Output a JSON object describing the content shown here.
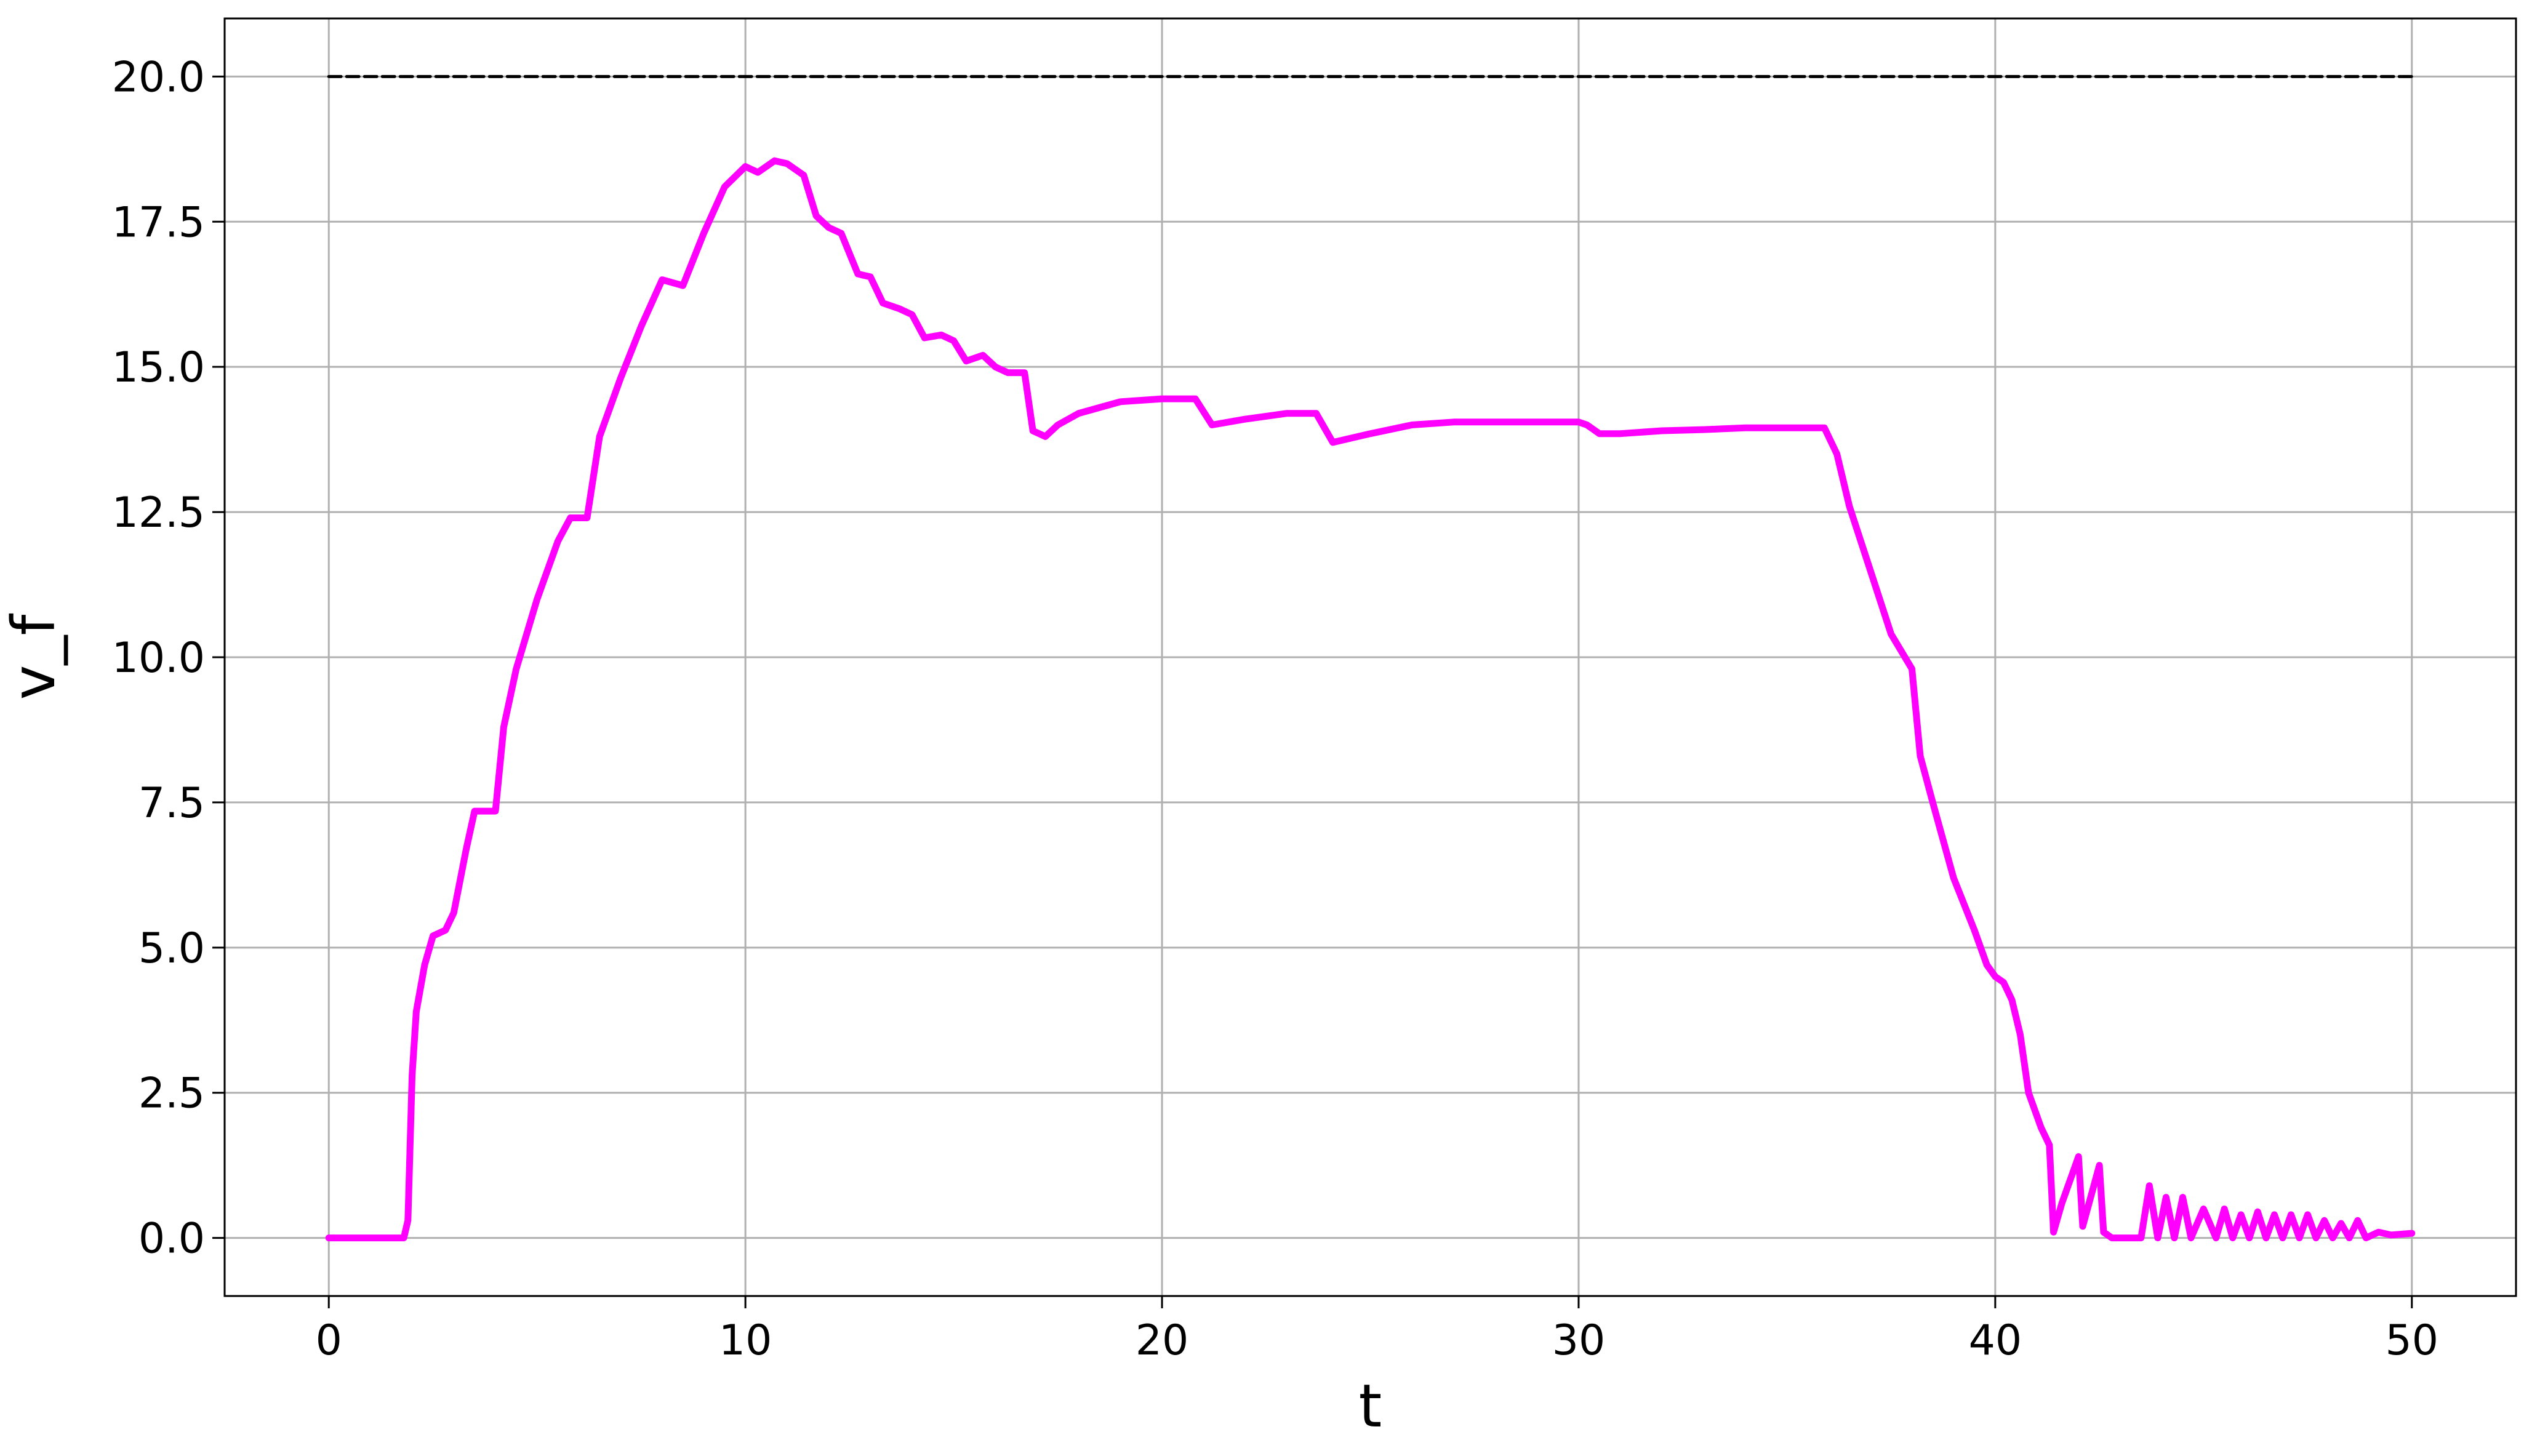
{
  "chart_data": {
    "type": "line",
    "title": "",
    "xlabel": "t",
    "ylabel": "v_f",
    "xlim": [
      -2.5,
      52.5
    ],
    "ylim": [
      -1.0,
      21.0
    ],
    "grid": true,
    "x_ticks": [
      0,
      10,
      20,
      30,
      40,
      50
    ],
    "x_tick_labels": [
      "0",
      "10",
      "20",
      "30",
      "40",
      "50"
    ],
    "y_ticks": [
      0.0,
      2.5,
      5.0,
      7.5,
      10.0,
      12.5,
      15.0,
      17.5,
      20.0
    ],
    "y_tick_labels": [
      "0.0",
      "2.5",
      "5.0",
      "7.5",
      "10.0",
      "12.5",
      "15.0",
      "17.5",
      "20.0"
    ],
    "series": [
      {
        "name": "",
        "color": "#ff00ff",
        "style": "solid",
        "x": [
          0,
          1.8,
          1.9,
          2.0,
          2.1,
          2.3,
          2.5,
          2.8,
          3.0,
          3.3,
          3.5,
          4.0,
          4.2,
          4.5,
          5.0,
          5.5,
          5.8,
          6.2,
          6.5,
          7.0,
          7.5,
          8.0,
          8.5,
          9.0,
          9.5,
          10.0,
          10.3,
          10.7,
          11.0,
          11.4,
          11.7,
          12.0,
          12.3,
          12.7,
          13.0,
          13.3,
          13.7,
          14.0,
          14.3,
          14.7,
          15.0,
          15.3,
          15.7,
          16.0,
          16.3,
          16.7,
          16.9,
          17.2,
          17.5,
          18.0,
          19.0,
          20.0,
          20.8,
          21.2,
          22.0,
          23.0,
          23.7,
          24.1,
          25.0,
          26.0,
          27.0,
          28.0,
          29.0,
          30.0,
          30.2,
          30.5,
          31.0,
          32.0,
          33.0,
          34.0,
          35.0,
          35.9,
          36.2,
          36.5,
          37.0,
          37.5,
          38.0,
          38.2,
          38.5,
          39.0,
          39.5,
          39.8,
          40.0,
          40.2,
          40.4,
          40.6,
          40.8,
          41.0,
          41.1,
          41.3,
          41.4,
          41.6,
          42.0,
          42.1,
          42.5,
          42.6,
          42.8,
          43.0,
          43.5,
          43.7,
          43.9,
          44.1,
          44.3,
          44.5,
          44.7,
          45.0,
          45.3,
          45.5,
          45.7,
          45.9,
          46.1,
          46.3,
          46.5,
          46.7,
          46.9,
          47.1,
          47.3,
          47.5,
          47.7,
          47.9,
          48.1,
          48.3,
          48.5,
          48.7,
          48.9,
          49.2,
          49.5,
          50.0
        ],
        "y": [
          0.0,
          0.0,
          0.3,
          2.8,
          3.9,
          4.7,
          5.2,
          5.3,
          5.6,
          6.7,
          7.35,
          7.35,
          8.8,
          9.8,
          11.0,
          12.0,
          12.4,
          12.4,
          13.8,
          14.8,
          15.7,
          16.5,
          16.4,
          17.3,
          18.1,
          18.45,
          18.35,
          18.55,
          18.5,
          18.3,
          17.6,
          17.4,
          17.3,
          16.6,
          16.55,
          16.1,
          16.0,
          15.9,
          15.5,
          15.55,
          15.45,
          15.1,
          15.2,
          15.0,
          14.9,
          14.9,
          13.9,
          13.8,
          14.0,
          14.2,
          14.4,
          14.45,
          14.45,
          14.0,
          14.1,
          14.2,
          14.2,
          13.7,
          13.85,
          14.0,
          14.05,
          14.05,
          14.05,
          14.05,
          14.0,
          13.85,
          13.85,
          13.9,
          13.92,
          13.95,
          13.95,
          13.95,
          13.5,
          12.6,
          11.5,
          10.4,
          9.8,
          8.3,
          7.5,
          6.2,
          5.3,
          4.7,
          4.5,
          4.4,
          4.1,
          3.5,
          2.5,
          2.1,
          1.9,
          1.6,
          0.1,
          0.6,
          1.4,
          0.2,
          1.25,
          0.1,
          0.0,
          0.0,
          0.0,
          0.9,
          0.0,
          0.7,
          0.0,
          0.7,
          0.0,
          0.5,
          0.0,
          0.5,
          0.0,
          0.4,
          0.0,
          0.45,
          0.0,
          0.4,
          0.0,
          0.4,
          0.0,
          0.4,
          0.0,
          0.3,
          0.0,
          0.25,
          0.0,
          0.3,
          0.0,
          0.1,
          0.05,
          0.08
        ]
      },
      {
        "name": "",
        "color": "#000000",
        "style": "dashed",
        "x": [
          0,
          50
        ],
        "y": [
          20.0,
          20.0
        ]
      }
    ]
  }
}
